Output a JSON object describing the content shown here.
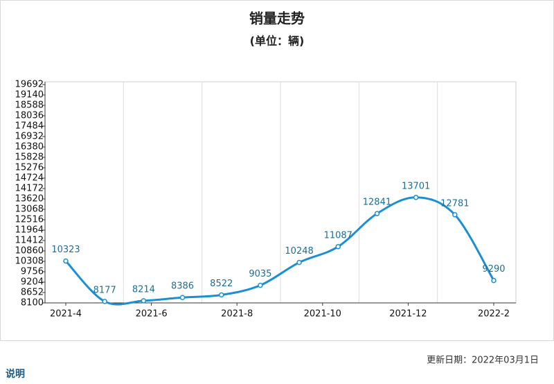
{
  "chart_data": {
    "type": "line",
    "title": "销量走势",
    "subtitle": "(单位：辆)",
    "x_labels": [
      "2021-4",
      "2021-6",
      "2021-8",
      "2021-10",
      "2021-12",
      "2022-2"
    ],
    "series": [
      {
        "color": "#1a8fd6",
        "values": [
          10323,
          8177,
          8214,
          8386,
          8522,
          9035,
          10248,
          11087,
          12841,
          13701,
          12781,
          9290
        ]
      }
    ],
    "ylim": [
      8100,
      19692
    ],
    "yticks": [
      8100,
      8652,
      9204,
      9756,
      10308,
      10860,
      11412,
      11964,
      12516,
      13068,
      13620,
      14172,
      14724,
      15276,
      15828,
      16380,
      16932,
      17484,
      18036,
      18588,
      19140,
      19692
    ],
    "smooth": true
  },
  "footer": {
    "update": "更新日期：2022年03月1日",
    "note": "说明"
  }
}
